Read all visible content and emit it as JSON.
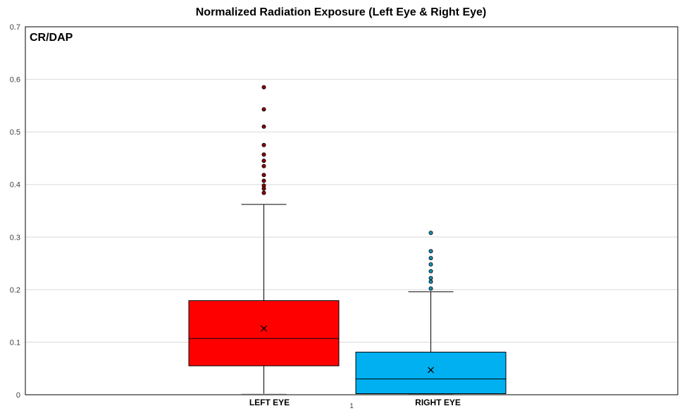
{
  "chart_data": {
    "type": "box",
    "title": "Normalized Radiation Exposure (Left Eye & Right Eye)",
    "inner_label": "CR/DAP",
    "x_category_tick": "1",
    "ylim": [
      0,
      0.7
    ],
    "y_ticks": [
      "0",
      "0.1",
      "0.2",
      "0.3",
      "0.4",
      "0.5",
      "0.6",
      "0.7"
    ],
    "grid": true,
    "series": [
      {
        "name": "LEFT EYE",
        "color": "#ff0000",
        "min": 0.0,
        "q1": 0.055,
        "median": 0.107,
        "q3": 0.179,
        "max": 0.362,
        "mean": 0.126,
        "outliers": [
          0.384,
          0.392,
          0.398,
          0.407,
          0.418,
          0.435,
          0.445,
          0.457,
          0.475,
          0.51,
          0.543,
          0.585
        ],
        "outlier_color": "#8b0000"
      },
      {
        "name": "RIGHT EYE",
        "color": "#00b0f0",
        "min": 0.0,
        "q1": 0.002,
        "median": 0.03,
        "q3": 0.081,
        "max": 0.196,
        "mean": 0.047,
        "outliers": [
          0.202,
          0.215,
          0.222,
          0.235,
          0.248,
          0.26,
          0.273,
          0.308
        ],
        "outlier_color": "#1a8fb3"
      }
    ]
  }
}
